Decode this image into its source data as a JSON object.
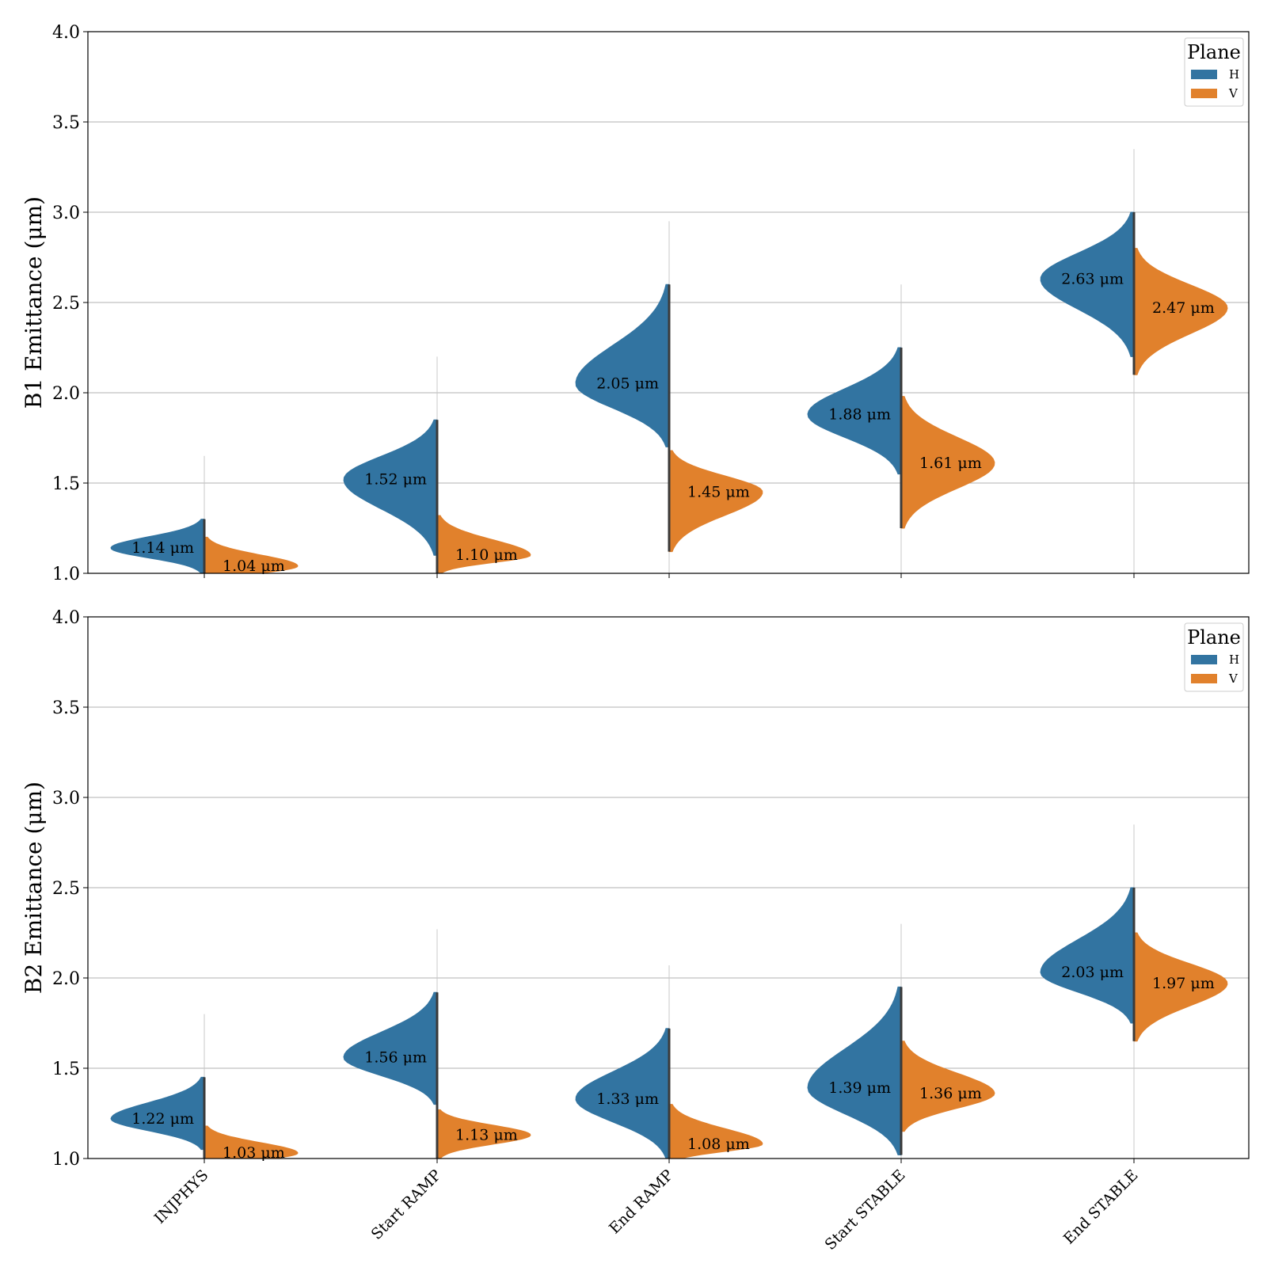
{
  "chart_data": [
    {
      "type": "violin",
      "ylabel": "B1 Emittance (μm)",
      "ylim": [
        1.0,
        4.0
      ],
      "yticks": [
        "1.0",
        "1.5",
        "2.0",
        "2.5",
        "3.0",
        "3.5",
        "4.0"
      ],
      "grid": true,
      "legend": {
        "title": "Plane",
        "placement": "top-right",
        "entries": [
          "H",
          "V"
        ]
      },
      "categories": [
        "INJPHYS",
        "Start RAMP",
        "End RAMP",
        "Start STABLE",
        "End STABLE"
      ],
      "colors": {
        "H": "#3274a1",
        "V": "#e1812c"
      },
      "series": [
        {
          "name": "H",
          "medians": [
            1.14,
            1.52,
            2.05,
            1.88,
            2.63
          ],
          "labels": [
            "1.14 μm",
            "1.52 μm",
            "2.05 μm",
            "1.88 μm",
            "2.63 μm"
          ],
          "range": [
            [
              1.0,
              1.3
            ],
            [
              1.1,
              1.85
            ],
            [
              1.7,
              2.6
            ],
            [
              1.55,
              2.25
            ],
            [
              2.2,
              3.0
            ]
          ]
        },
        {
          "name": "V",
          "medians": [
            1.04,
            1.1,
            1.45,
            1.61,
            2.47
          ],
          "labels": [
            "1.04 μm",
            "1.10 μm",
            "1.45 μm",
            "1.61 μm",
            "2.47 μm"
          ],
          "range": [
            [
              1.0,
              1.2
            ],
            [
              1.0,
              1.32
            ],
            [
              1.12,
              1.68
            ],
            [
              1.25,
              1.98
            ],
            [
              2.1,
              2.8
            ]
          ]
        }
      ]
    },
    {
      "type": "violin",
      "ylabel": "B2 Emittance (μm)",
      "ylim": [
        1.0,
        4.0
      ],
      "yticks": [
        "1.0",
        "1.5",
        "2.0",
        "2.5",
        "3.0",
        "3.5",
        "4.0"
      ],
      "grid": true,
      "legend": {
        "title": "Plane",
        "placement": "top-right",
        "entries": [
          "H",
          "V"
        ]
      },
      "categories": [
        "INJPHYS",
        "Start RAMP",
        "End RAMP",
        "Start STABLE",
        "End STABLE"
      ],
      "colors": {
        "H": "#3274a1",
        "V": "#e1812c"
      },
      "series": [
        {
          "name": "H",
          "medians": [
            1.22,
            1.56,
            1.33,
            1.39,
            2.03
          ],
          "labels": [
            "1.22 μm",
            "1.56 μm",
            "1.33 μm",
            "1.39 μm",
            "2.03 μm"
          ],
          "range": [
            [
              1.05,
              1.45
            ],
            [
              1.3,
              1.92
            ],
            [
              1.0,
              1.72
            ],
            [
              1.02,
              1.95
            ],
            [
              1.75,
              2.5
            ]
          ]
        },
        {
          "name": "V",
          "medians": [
            1.03,
            1.13,
            1.08,
            1.36,
            1.97
          ],
          "labels": [
            "1.03 μm",
            "1.13 μm",
            "1.08 μm",
            "1.36 μm",
            "1.97 μm"
          ],
          "range": [
            [
              1.0,
              1.18
            ],
            [
              1.0,
              1.27
            ],
            [
              1.0,
              1.3
            ],
            [
              1.15,
              1.65
            ],
            [
              1.65,
              2.25
            ]
          ]
        }
      ]
    }
  ]
}
